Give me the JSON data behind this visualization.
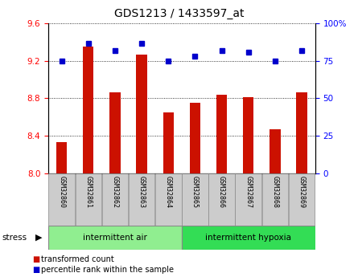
{
  "title": "GDS1213 / 1433597_at",
  "samples": [
    "GSM32860",
    "GSM32861",
    "GSM32862",
    "GSM32863",
    "GSM32864",
    "GSM32865",
    "GSM32866",
    "GSM32867",
    "GSM32868",
    "GSM32869"
  ],
  "red_values": [
    8.33,
    9.35,
    8.86,
    9.27,
    8.65,
    8.75,
    8.84,
    8.81,
    8.47,
    8.86
  ],
  "blue_values": [
    75,
    87,
    82,
    87,
    75,
    78,
    82,
    81,
    75,
    82
  ],
  "left_ylim": [
    8.0,
    9.6
  ],
  "right_ylim": [
    0,
    100
  ],
  "left_yticks": [
    8.0,
    8.4,
    8.8,
    9.2,
    9.6
  ],
  "right_yticks": [
    0,
    25,
    50,
    75,
    100
  ],
  "right_yticklabels": [
    "0",
    "25",
    "50",
    "75",
    "100%"
  ],
  "group1_label": "intermittent air",
  "group2_label": "intermittent hypoxia",
  "group1_color": "#90EE90",
  "group2_color": "#33DD55",
  "bar_color": "#CC1100",
  "dot_color": "#0000CC",
  "bar_base": 8.0,
  "n_group1": 5,
  "n_group2": 5,
  "legend_red": "transformed count",
  "legend_blue": "percentile rank within the sample",
  "tick_label_bg": "#cccccc",
  "stress_label": "stress"
}
